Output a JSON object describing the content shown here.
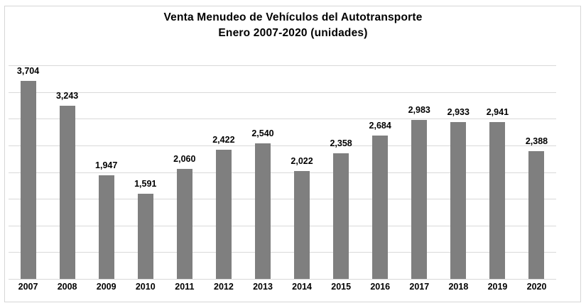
{
  "chart": {
    "title": "Venta Menudeo de Vehículos del Autotransporte",
    "subtitle": "Enero 2007-2020 (unidades)"
  },
  "chart_data": {
    "type": "bar",
    "title": "Venta Menudeo de Vehículos del Autotransporte",
    "subtitle": "Enero 2007-2020 (unidades)",
    "categories": [
      "2007",
      "2008",
      "2009",
      "2010",
      "2011",
      "2012",
      "2013",
      "2014",
      "2015",
      "2016",
      "2017",
      "2018",
      "2019",
      "2020"
    ],
    "values": [
      3704,
      3243,
      1947,
      1591,
      2060,
      2422,
      2540,
      2022,
      2358,
      2684,
      2983,
      2933,
      2941,
      2388
    ],
    "value_labels": [
      "3,704",
      "3,243",
      "1,947",
      "1,591",
      "2,060",
      "2,422",
      "2,540",
      "2,022",
      "2,358",
      "2,684",
      "2,983",
      "2,933",
      "2,941",
      "2,388"
    ],
    "xlabel": "",
    "ylabel": "",
    "ylim": [
      0,
      4000
    ],
    "gridline_interval": 500,
    "grid": true,
    "legend_position": "none",
    "bar_color": "#7f7f7f",
    "gridline_color": "#d9d9d9",
    "frame_color": "#d6d6d6",
    "text_color": "#000000"
  }
}
